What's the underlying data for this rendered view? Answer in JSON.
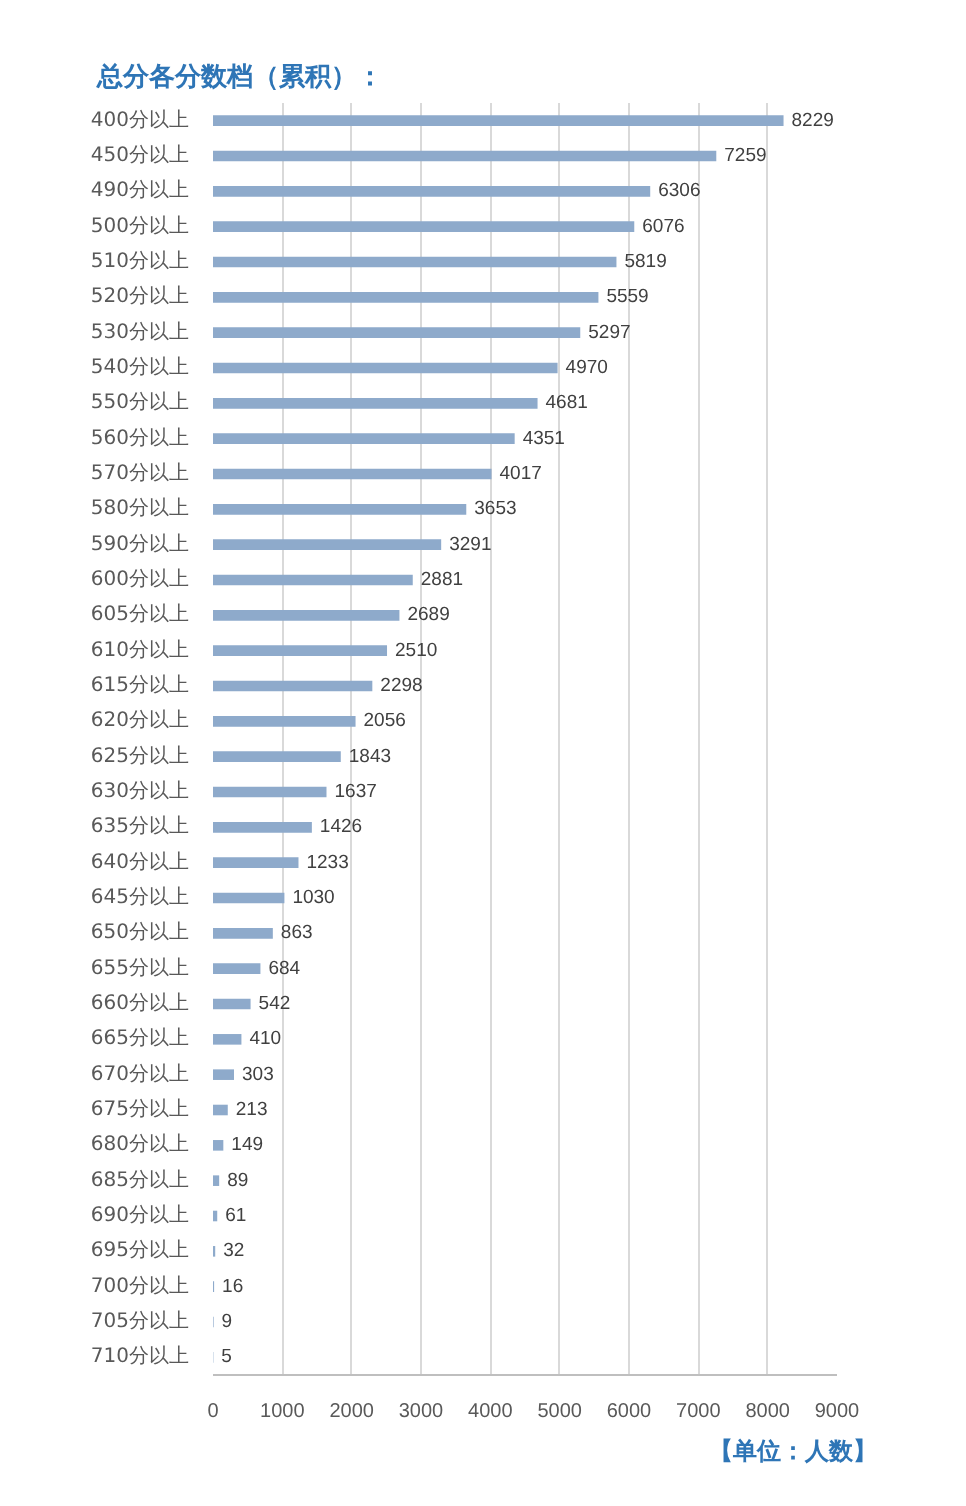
{
  "chart_data": {
    "type": "bar",
    "orientation": "horizontal",
    "title": "总分各分数档（累积）：",
    "categories": [
      "400分以上",
      "450分以上",
      "490分以上",
      "500分以上",
      "510分以上",
      "520分以上",
      "530分以上",
      "540分以上",
      "550分以上",
      "560分以上",
      "570分以上",
      "580分以上",
      "590分以上",
      "600分以上",
      "605分以上",
      "610分以上",
      "615分以上",
      "620分以上",
      "625分以上",
      "630分以上",
      "635分以上",
      "640分以上",
      "645分以上",
      "650分以上",
      "655分以上",
      "660分以上",
      "665分以上",
      "670分以上",
      "675分以上",
      "680分以上",
      "685分以上",
      "690分以上",
      "695分以上",
      "700分以上",
      "705分以上",
      "710分以上"
    ],
    "values": [
      8229,
      7259,
      6306,
      6076,
      5819,
      5559,
      5297,
      4970,
      4681,
      4351,
      4017,
      3653,
      3291,
      2881,
      2689,
      2510,
      2298,
      2056,
      1843,
      1637,
      1426,
      1233,
      1030,
      863,
      684,
      542,
      410,
      303,
      213,
      149,
      89,
      61,
      32,
      16,
      9,
      5
    ],
    "color": "#8eaacb",
    "xlim": [
      0,
      9000
    ],
    "xticks": [
      0,
      1000,
      2000,
      3000,
      4000,
      5000,
      6000,
      7000,
      8000,
      9000
    ],
    "grid": "x",
    "data_labels": true,
    "annotations": [
      "【单位：人数】"
    ]
  }
}
